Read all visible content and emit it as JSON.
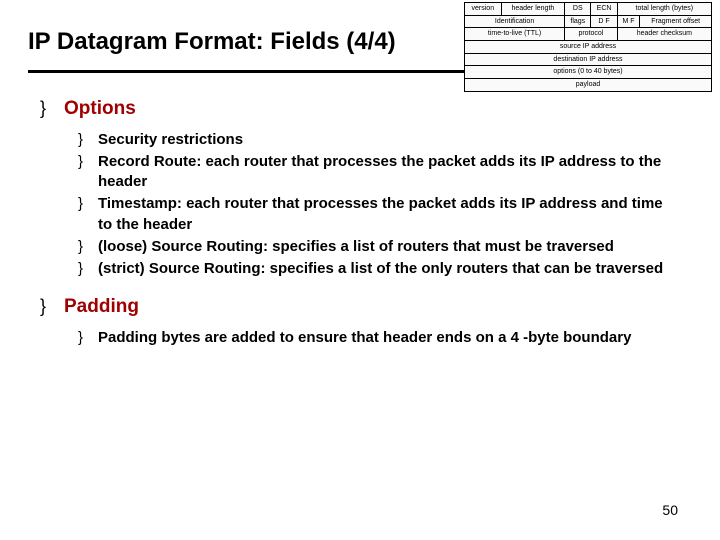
{
  "title": "IP Datagram Format: Fields (4/4)",
  "page_number": "50",
  "colors": {
    "heading": "#a00000",
    "text": "#000000",
    "rule": "#000000",
    "background": "#ffffff"
  },
  "fonts": {
    "title_size_pt": 24,
    "section_size_pt": 19,
    "body_size_pt": 15,
    "diagram_size_pt": 7
  },
  "sections": [
    {
      "title": "Options",
      "items": [
        "Security restrictions",
        "Record Route: each router that processes the packet adds its IP address to the header",
        "Timestamp: each router that processes the packet adds its IP address and time to the header",
        "(loose) Source Routing: specifies a list of routers that must be traversed",
        "(strict) Source Routing: specifies a list of the only routers that can be traversed"
      ]
    },
    {
      "title": "Padding",
      "items": [
        "Padding bytes are added to ensure that header ends on a 4 -byte boundary"
      ]
    }
  ],
  "ip_header": {
    "rows": [
      [
        "version",
        "header length",
        "DS",
        "ECN",
        "total length (bytes)"
      ],
      [
        "Identification",
        "flags",
        "D F",
        "M F",
        "Fragment offset"
      ],
      [
        "time-to-live (TTL)",
        "protocol",
        "header checksum"
      ],
      [
        "source IP address"
      ],
      [
        "destination IP address"
      ],
      [
        "options (0 to 40 bytes)"
      ],
      [
        "payload"
      ]
    ],
    "row_colspans": [
      [
        1,
        1,
        1,
        1,
        2
      ],
      [
        2,
        1,
        1,
        1,
        1
      ],
      [
        2,
        2,
        2
      ],
      [
        6
      ],
      [
        6
      ],
      [
        6
      ],
      [
        6
      ]
    ]
  }
}
